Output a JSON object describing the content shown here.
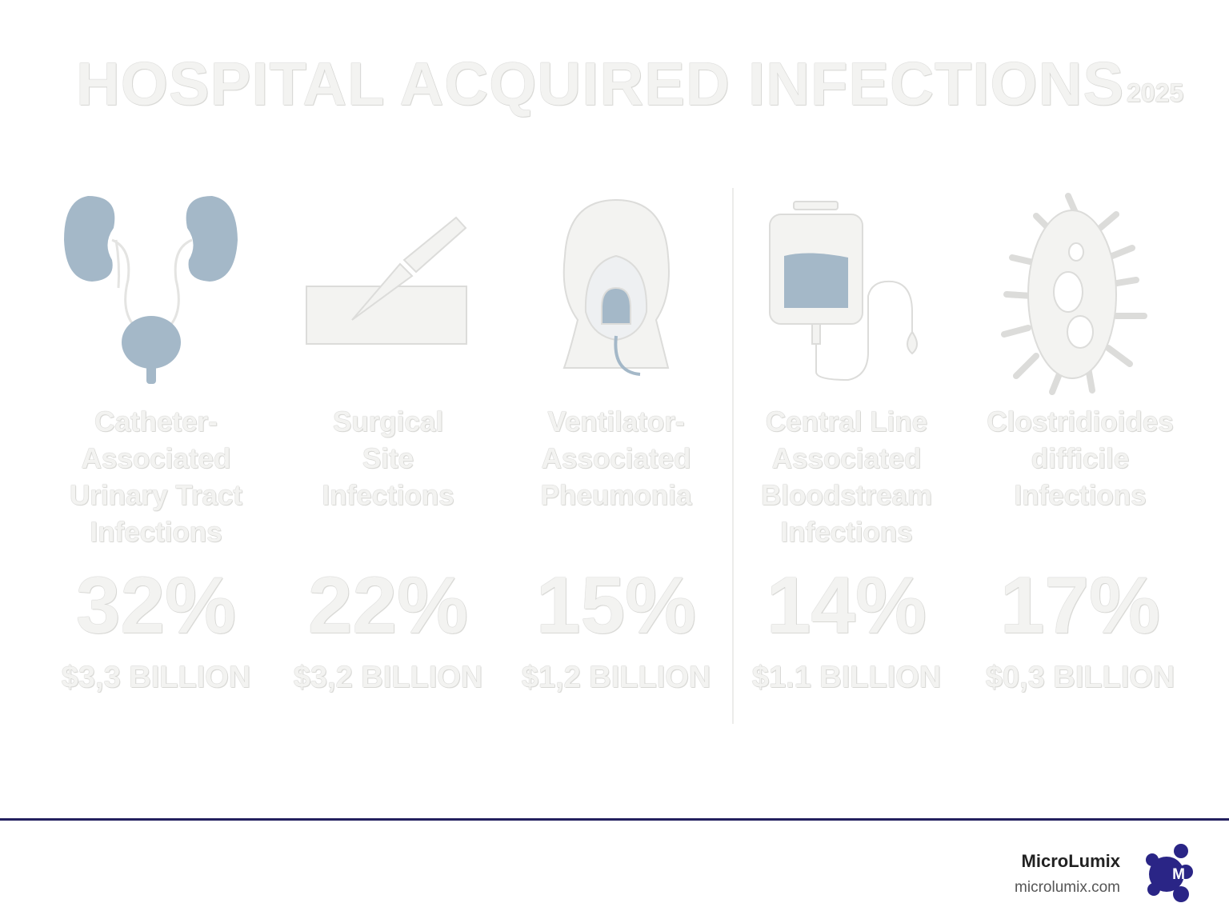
{
  "header": {
    "title": "HOSPITAL ACQUIRED INFECTIONS",
    "year": "2025"
  },
  "items": [
    {
      "label": [
        "Catheter-",
        "Associated",
        "Urinary Tract",
        "Infections"
      ],
      "percent": "32%",
      "cost": "$3,3 BILLION"
    },
    {
      "label": [
        "Surgical",
        "Site",
        "Infections"
      ],
      "percent": "22%",
      "cost": "$3,2 BILLION"
    },
    {
      "label": [
        "Ventilator-",
        "Associated",
        "Pheumonia"
      ],
      "percent": "15%",
      "cost": "$1,2 BILLION"
    },
    {
      "label": [
        "Central Line",
        "Associated",
        "Bloodstream",
        "Infections"
      ],
      "percent": "14%",
      "cost": "$1.1 BILLION"
    },
    {
      "label": [
        "Clostridioides",
        "difficile",
        "Infections"
      ],
      "percent": "17%",
      "cost": "$0,3 BILLION"
    }
  ],
  "footer": {
    "brand": "MicroLumix",
    "url": "microlumix.com"
  }
}
